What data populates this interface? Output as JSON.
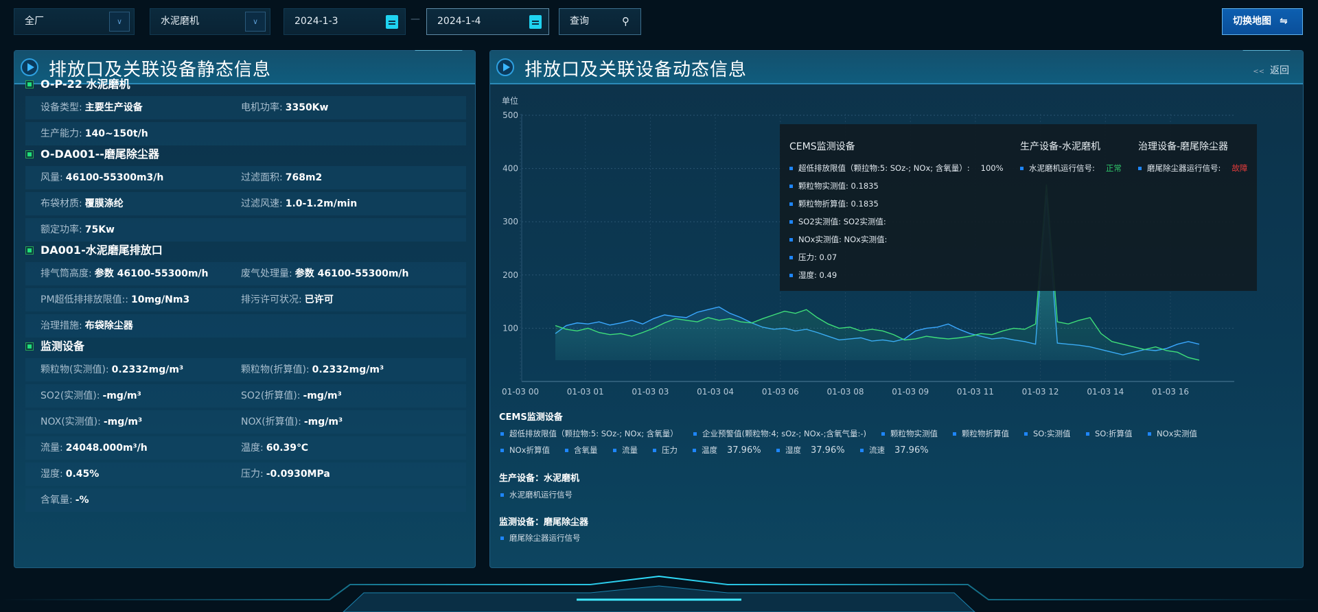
{
  "toolbar": {
    "plant": "全厂",
    "device": "水泥磨机",
    "date_start": "2024-1-3",
    "date_sep": "—",
    "date_end": "2024-1-4",
    "query": "查询",
    "switch_map": "切换地图",
    "switch_icon": "⇋"
  },
  "left_panel": {
    "title": "排放口及关联设备静态信息",
    "sections": [
      {
        "title": "O-P-22 水泥磨机",
        "rows": [
          [
            {
              "label": "设备类型:",
              "value": "主要生产设备"
            },
            {
              "label": "电机功率:",
              "value": "3350Kw"
            }
          ],
          [
            {
              "label": "生产能力:",
              "value": "140~150t/h"
            }
          ]
        ]
      },
      {
        "title": "O-DA001--磨尾除尘器",
        "rows": [
          [
            {
              "label": "风量:",
              "value": "46100-55300m3/h"
            },
            {
              "label": "过滤面积:",
              "value": "768m2"
            }
          ],
          [
            {
              "label": "布袋材质:",
              "value": "覆膜涤纶"
            },
            {
              "label": "过滤风速:",
              "value": "1.0-1.2m/min"
            }
          ],
          [
            {
              "label": "额定功率:",
              "value": "75Kw"
            }
          ]
        ]
      },
      {
        "title": "DA001-水泥磨尾排放口",
        "rows": [
          [
            {
              "label": "排气筒高度:",
              "value": "参数 46100-55300m/h"
            },
            {
              "label": "废气处理量:",
              "value": "参数 46100-55300m/h"
            }
          ],
          [
            {
              "label": "PM超低排排放限值::",
              "value": "10mg/Nm3"
            },
            {
              "label": "排污许可状况:",
              "value": "已许可"
            }
          ],
          [
            {
              "label": "治理措施:",
              "value": "布袋除尘器"
            }
          ]
        ]
      },
      {
        "title": "监测设备",
        "rows": [
          [
            {
              "label": "颗粒物(实测值):",
              "value": "0.2332mg/m³"
            },
            {
              "label": "颗粒物(折算值):",
              "value": "0.2332mg/m³"
            }
          ],
          [
            {
              "label": "SO2(实测值):",
              "value": "-mg/m³"
            },
            {
              "label": "SO2(折算值):",
              "value": "-mg/m³"
            }
          ],
          [
            {
              "label": "NOX(实测值):",
              "value": "-mg/m³"
            },
            {
              "label": "NOX(折算值):",
              "value": "-mg/m³"
            }
          ],
          [
            {
              "label": "流量:",
              "value": "24048.000m³/h"
            },
            {
              "label": "温度:",
              "value": "60.39℃"
            }
          ],
          [
            {
              "label": "湿度:",
              "value": "0.45%"
            },
            {
              "label": "压力:",
              "value": "-0.0930MPa"
            }
          ],
          [
            {
              "label": "含氧量:",
              "value": "-%"
            }
          ]
        ]
      }
    ]
  },
  "right_panel": {
    "title": "排放口及关联设备动态信息",
    "back": "返回",
    "back_icon": "<<"
  },
  "chart_data": {
    "type": "area",
    "ylabel": "单位",
    "ylim": [
      0,
      500
    ],
    "yticks": [
      "100",
      "200",
      "300",
      "400",
      "500"
    ],
    "grid": true,
    "xticks": [
      "01-03 00",
      "01-03 01",
      "01-03 03",
      "01-03 04",
      "01-03 06",
      "01-03 08",
      "01-03 09",
      "01-03 11",
      "01-03 12",
      "01-03 14",
      "01-03 16"
    ],
    "colors": [
      "#3aa8ff",
      "#3fe07a"
    ],
    "series": [
      {
        "values": [
          90,
          105,
          110,
          108,
          112,
          106,
          110,
          115,
          108,
          118,
          125,
          122,
          120,
          130,
          135,
          140,
          128,
          120,
          110,
          102,
          98,
          100,
          95,
          98,
          92,
          85,
          78,
          80,
          82,
          76,
          78,
          75,
          80,
          95,
          100,
          102,
          108,
          98,
          90,
          85,
          80,
          82,
          78,
          75,
          70,
          350,
          72,
          70,
          68,
          65,
          60,
          55,
          50,
          55,
          60,
          58,
          62,
          70,
          75,
          70
        ]
      },
      {
        "values": [
          105,
          98,
          95,
          100,
          92,
          88,
          90,
          85,
          92,
          100,
          110,
          118,
          115,
          112,
          120,
          115,
          118,
          112,
          110,
          118,
          125,
          132,
          128,
          135,
          120,
          108,
          100,
          102,
          95,
          98,
          95,
          88,
          78,
          80,
          85,
          82,
          80,
          82,
          85,
          90,
          88,
          95,
          100,
          98,
          108,
          370,
          112,
          108,
          115,
          120,
          90,
          75,
          70,
          65,
          60,
          65,
          58,
          55,
          45,
          40
        ]
      }
    ]
  },
  "tooltip": {
    "groups": [
      {
        "title": "CEMS监测设备",
        "items": [
          {
            "label": "超低排放限值（颗拉物:5: SOz-; NOx; 含氧量）:",
            "value": "100%"
          },
          {
            "label": "颗粒物实测值: 0.1835"
          },
          {
            "label": "颗粒物折算值: 0.1835"
          },
          {
            "label": "SO2实测值: SO2实测值:"
          },
          {
            "label": "NOx实测值: NOx实测值:"
          },
          {
            "label": "压力: 0.07"
          },
          {
            "label": "湿度: 0.49"
          }
        ]
      },
      {
        "title": "生产设备-水泥磨机",
        "items": [
          {
            "label": "水泥磨机运行信号:",
            "value": "正常",
            "color": "#2fc66a"
          }
        ]
      },
      {
        "title": "治理设备-磨尾除尘器",
        "items": [
          {
            "label": "磨尾除尘器运行信号:",
            "value": "故障",
            "color": "#e53b3b"
          }
        ]
      }
    ]
  },
  "legend": {
    "cems_title": "CEMS监测设备",
    "cems_row1": [
      "超低排放限值（颗拉物:5: SOz-; NOx; 含氧量）",
      "企业预警值(颗粒物:4; sOz-; NOx-;含氧气量:-)",
      "颗粒物实测值",
      "颗粒物折算值",
      "SO:实测值",
      "SO:折算值",
      "NOx实测值"
    ],
    "cems_row2": [
      {
        "label": "NOx折算值"
      },
      {
        "label": "含氧量"
      },
      {
        "label": "流量"
      },
      {
        "label": "压力"
      },
      {
        "label": "温度",
        "value": "37.96%"
      },
      {
        "label": "湿度",
        "value": "37.96%"
      },
      {
        "label": "流速",
        "value": "37.96%"
      }
    ],
    "prod_title": "生产设备：水泥磨机",
    "prod_items": [
      "水泥磨机运行信号"
    ],
    "mon_title": "监测设备：磨尾除尘器",
    "mon_items": [
      "磨尾除尘器运行信号"
    ]
  }
}
